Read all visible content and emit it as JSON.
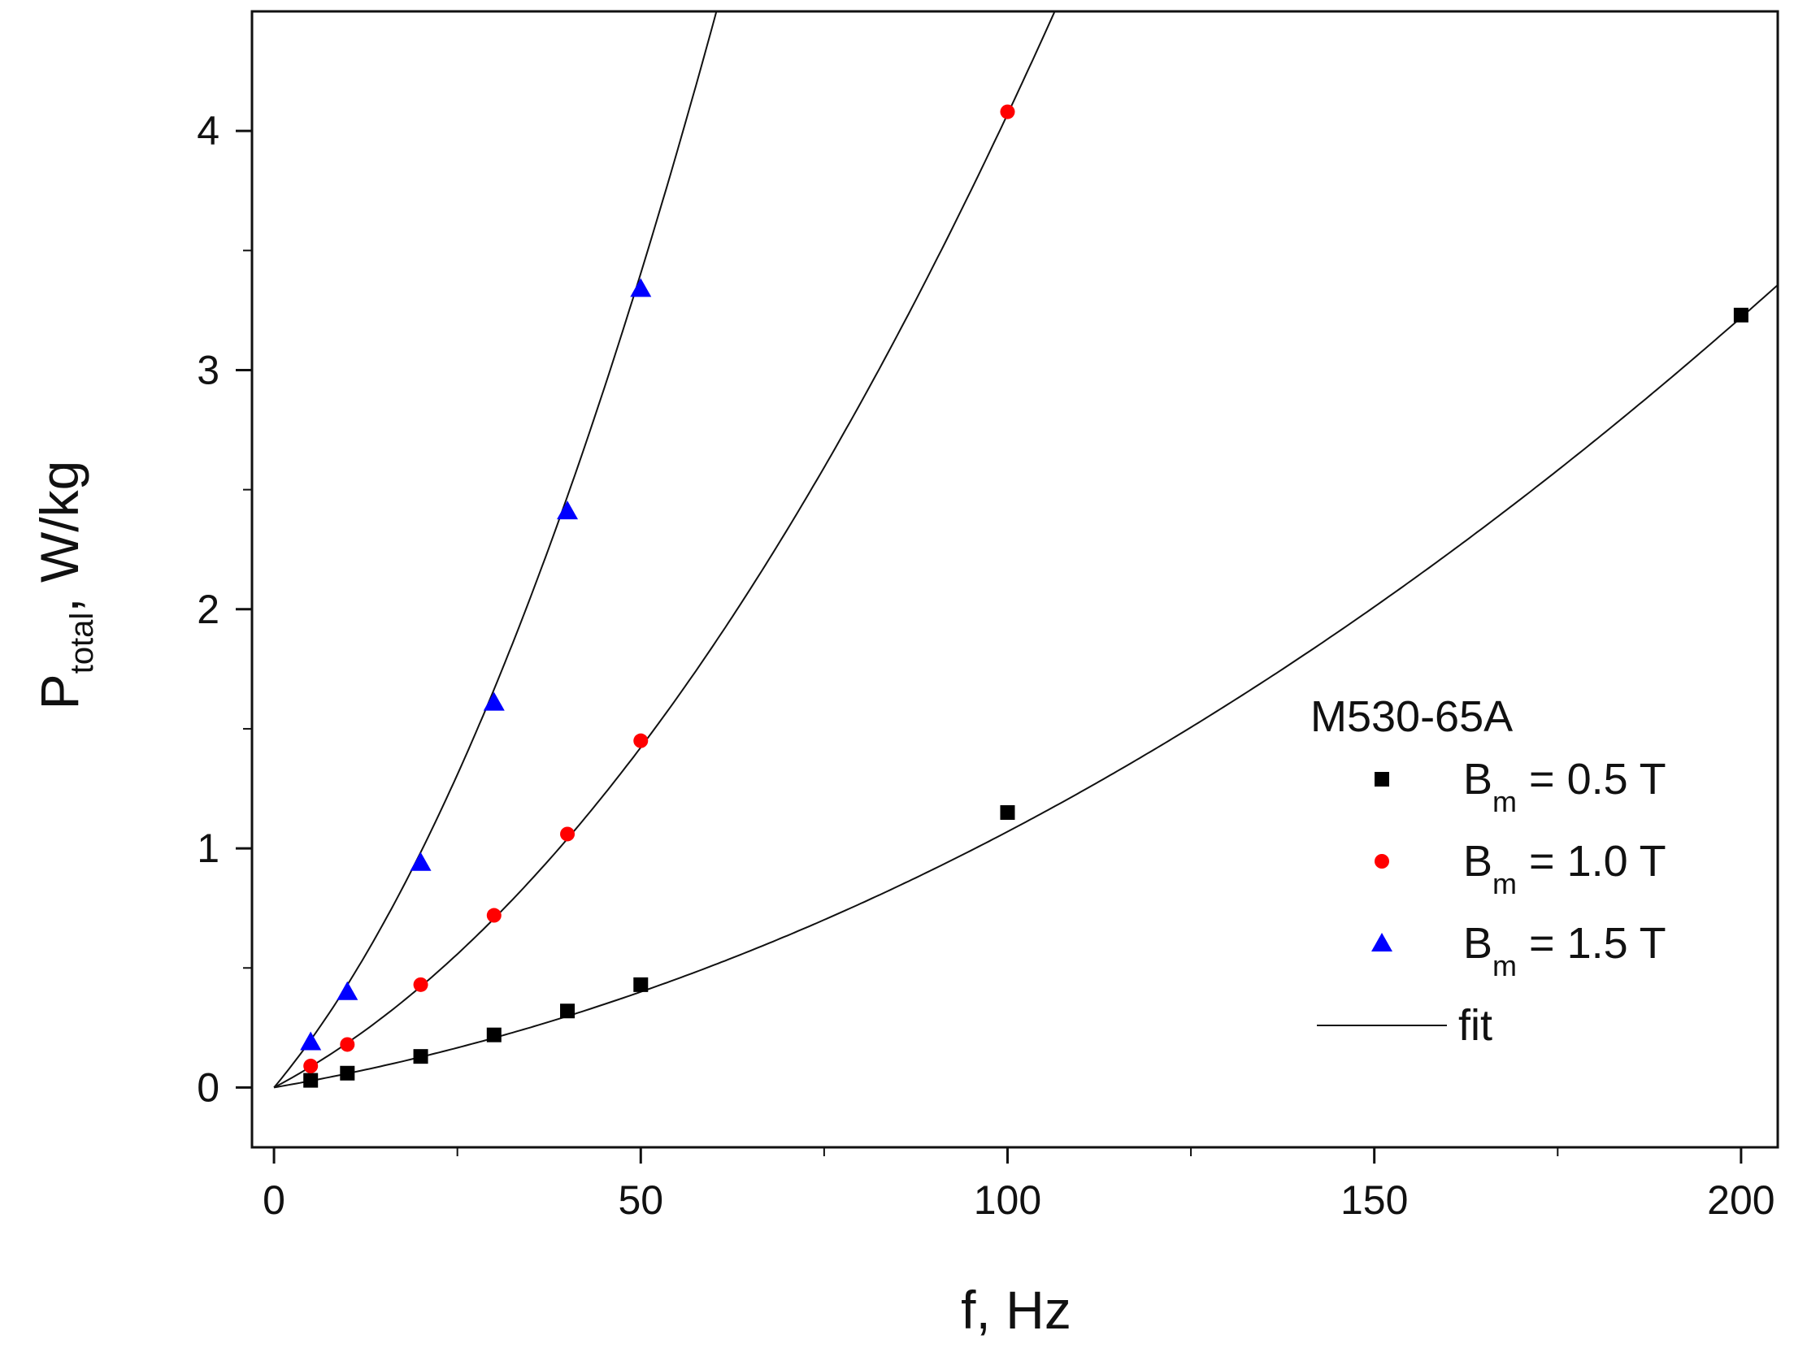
{
  "chart_data": {
    "type": "scatter",
    "title": "",
    "xlabel": "f, Hz",
    "ylabel": {
      "main": "P",
      "subscript": "total",
      "suffix": ", W/kg"
    },
    "xlim": [
      -3,
      205
    ],
    "ylim": [
      -0.25,
      4.5
    ],
    "x_ticks": [
      0,
      50,
      100,
      150,
      200
    ],
    "y_ticks": [
      0,
      1,
      2,
      3,
      4
    ],
    "x_minor_step": 25,
    "y_minor_step": 0.5,
    "grid": false,
    "legend": {
      "position": "right",
      "title": "M530-65A",
      "entries": [
        {
          "symbol": "B",
          "sub": "m",
          "text": " = 0.5 T",
          "marker": "square",
          "color": "#000000"
        },
        {
          "symbol": "B",
          "sub": "m",
          "text": " = 1.0 T",
          "marker": "circle",
          "color": "#ff0000"
        },
        {
          "symbol": "B",
          "sub": "m",
          "text": " = 1.5 T",
          "marker": "triangle",
          "color": "#0000ff"
        },
        {
          "symbol": "",
          "sub": "",
          "text": "fit",
          "marker": "line",
          "color": "#111111"
        }
      ]
    },
    "series": [
      {
        "name": "Bm = 0.5 T",
        "marker": "square",
        "color": "#000000",
        "x": [
          5,
          10,
          20,
          30,
          40,
          50,
          100,
          200
        ],
        "y": [
          0.03,
          0.06,
          0.13,
          0.22,
          0.32,
          0.43,
          1.15,
          3.23
        ],
        "fit_coeffs": [
          0.0053,
          5.4e-05
        ]
      },
      {
        "name": "Bm = 1.0 T",
        "marker": "circle",
        "color": "#ff0000",
        "x": [
          5,
          10,
          20,
          30,
          40,
          50,
          100
        ],
        "y": [
          0.09,
          0.18,
          0.43,
          0.72,
          1.06,
          1.45,
          4.08
        ],
        "fit_coeffs": [
          0.0162,
          0.000245
        ]
      },
      {
        "name": "Bm = 1.5 T",
        "marker": "triangle",
        "color": "#0000ff",
        "x": [
          5,
          10,
          20,
          30,
          40,
          50
        ],
        "y": [
          0.19,
          0.4,
          0.94,
          1.61,
          2.41,
          3.34
        ],
        "fit_coeffs": [
          0.0366,
          0.00063
        ]
      }
    ]
  }
}
